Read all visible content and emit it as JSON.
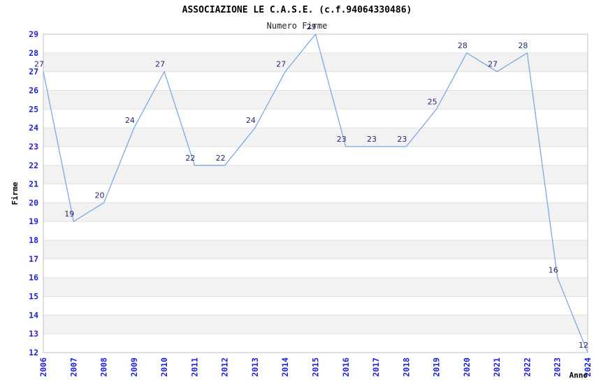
{
  "chart_data": {
    "type": "line",
    "title": "ASSOCIAZIONE LE C.A.S.E. (c.f.94064330486)",
    "subtitle": "Numero Firme",
    "xlabel": "Anno",
    "ylabel": "Firme",
    "x": [
      "2006",
      "2007",
      "2008",
      "2009",
      "2010",
      "2011",
      "2012",
      "2013",
      "2014",
      "2015",
      "2016",
      "2017",
      "2018",
      "2019",
      "2020",
      "2021",
      "2022",
      "2023",
      "2024"
    ],
    "series": [
      {
        "name": "Numero Firme",
        "values": [
          27,
          19,
          20,
          24,
          27,
          22,
          22,
          24,
          27,
          29,
          23,
          23,
          23,
          25,
          28,
          27,
          28,
          16,
          12
        ]
      }
    ],
    "ylim": [
      12,
      29
    ],
    "ytick_step": 1,
    "grid": "horizontal-only",
    "bands": "alternating gray stripes on odd-to-even unit intervals (13-14, 15-16, ... 27-28)",
    "legend_position": "none",
    "data_labels_shown": true,
    "colors": {
      "line": "#7aaae4",
      "tick_label": "#2222dd",
      "data_label": "#27276e",
      "band_fill": "#f2f2f2",
      "gridline": "#e0e0e0",
      "plot_border": "#c0c0c0",
      "title_text": "#000000",
      "background": "#ffffff"
    }
  }
}
